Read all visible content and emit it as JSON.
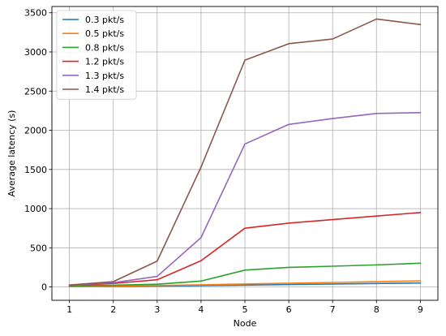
{
  "chart_data": {
    "type": "line",
    "title": "",
    "xlabel": "Node",
    "ylabel": "Average latency (s)",
    "x": [
      1,
      2,
      3,
      4,
      5,
      6,
      7,
      8,
      9
    ],
    "xticks": [
      "1",
      "2",
      "3",
      "4",
      "5",
      "6",
      "7",
      "8",
      "9"
    ],
    "yticks": [
      "0",
      "500",
      "1000",
      "1500",
      "2000",
      "2500",
      "3000",
      "3500"
    ],
    "xlim": [
      0.6,
      9.4
    ],
    "ylim": [
      -170,
      3580
    ],
    "grid": true,
    "legend_position": "top-left",
    "series": [
      {
        "name": "0.3 pkt/s",
        "color": "#1f77b4",
        "values": [
          5,
          8,
          12,
          17,
          24,
          31,
          38,
          44,
          50
        ]
      },
      {
        "name": "0.5 pkt/s",
        "color": "#ff7f0e",
        "values": [
          8,
          12,
          18,
          27,
          38,
          48,
          58,
          68,
          78
        ]
      },
      {
        "name": "0.8 pkt/s",
        "color": "#2ca02c",
        "values": [
          15,
          22,
          35,
          75,
          215,
          250,
          265,
          282,
          303
        ]
      },
      {
        "name": "1.2 pkt/s",
        "color": "#d62728",
        "values": [
          20,
          45,
          92,
          335,
          750,
          815,
          860,
          905,
          950
        ]
      },
      {
        "name": "1.3 pkt/s",
        "color": "#9467bd",
        "values": [
          22,
          55,
          135,
          630,
          1825,
          2075,
          2150,
          2215,
          2225
        ]
      },
      {
        "name": "1.4 pkt/s",
        "color": "#8c564b",
        "values": [
          25,
          68,
          330,
          1530,
          2895,
          3105,
          3165,
          3420,
          3350
        ]
      }
    ]
  }
}
